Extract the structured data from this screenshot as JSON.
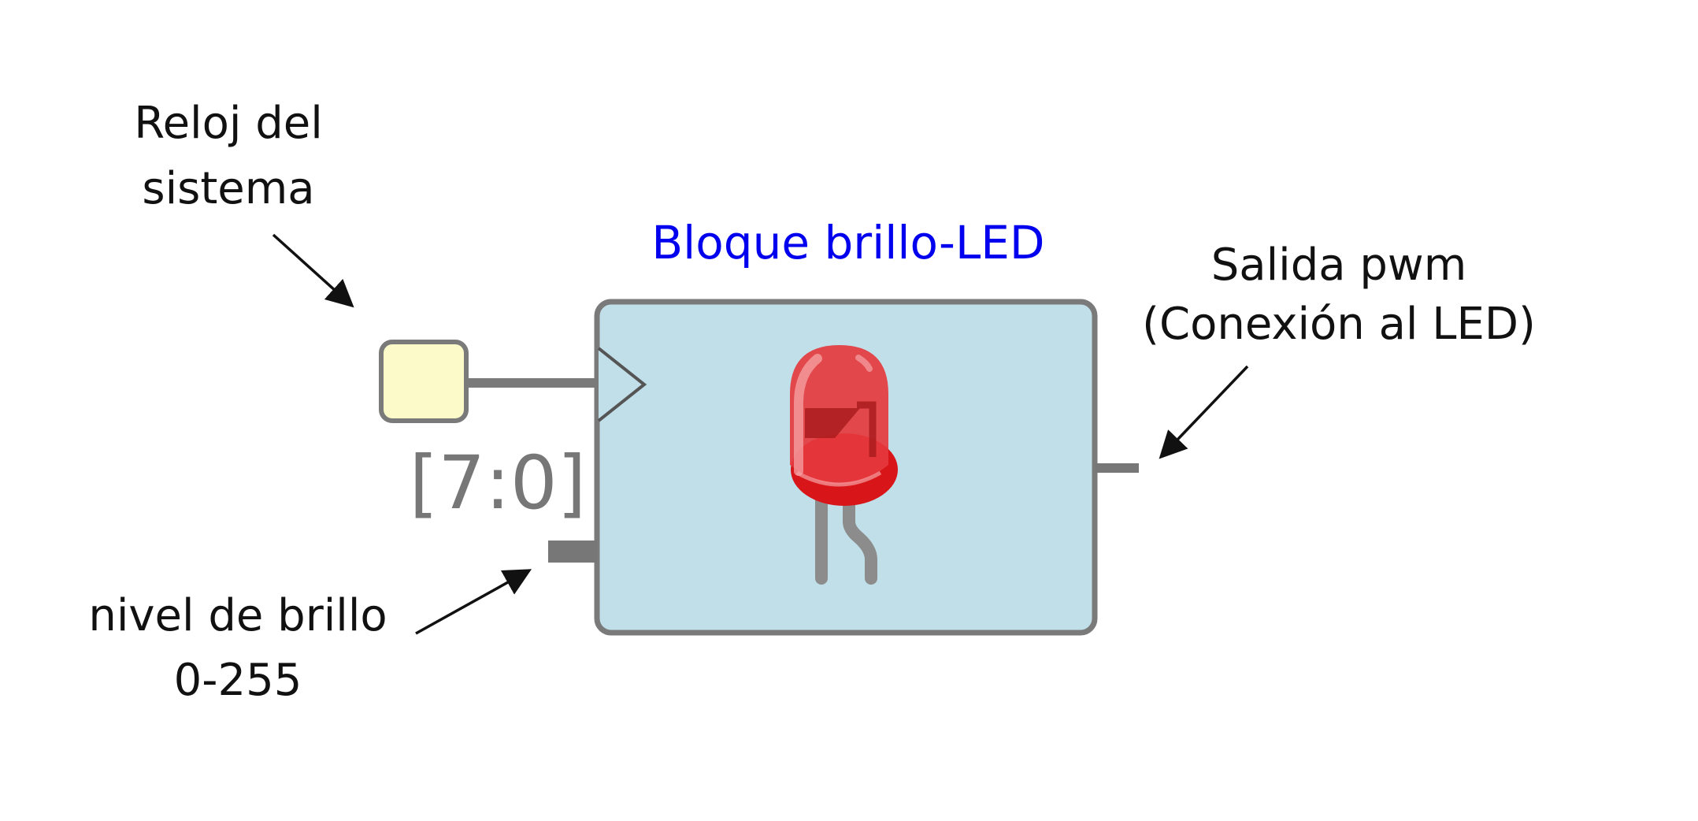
{
  "labels": {
    "clock_line1": "Reloj del",
    "clock_line2": "sistema",
    "block_title": "Bloque brillo-LED",
    "output_line1": "Salida pwm",
    "output_line2": "(Conexión al LED)",
    "brightness_line1": "nivel de brillo",
    "brightness_line2": "0-255",
    "bus_width": "[7:0]"
  },
  "colors": {
    "block_fill": "#c1dfe9",
    "block_stroke": "#7a7a7a",
    "clock_box_fill": "#fbfac8",
    "title_color": "#0000ee",
    "led_red": "#e53a3e",
    "led_dark_red": "#c0181c"
  },
  "icons": {
    "led": "red-led-icon",
    "clock": "clock-edge-triangle-icon"
  }
}
